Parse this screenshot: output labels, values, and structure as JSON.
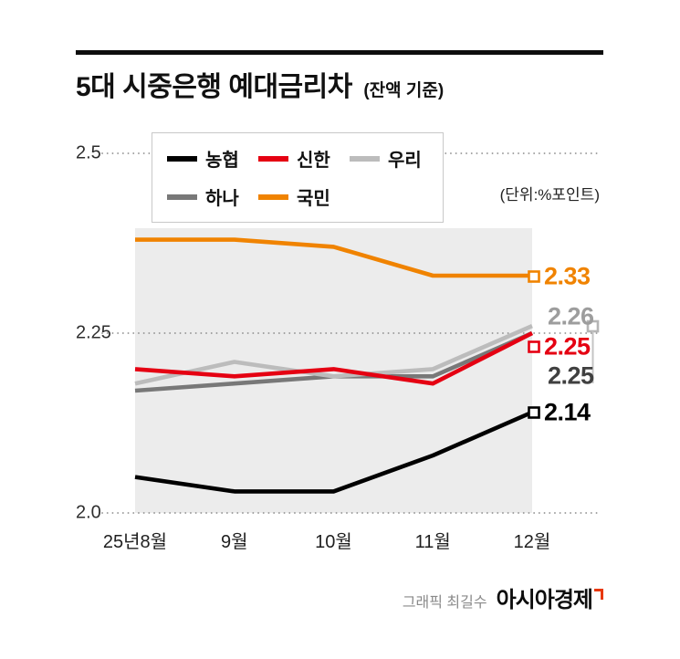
{
  "title": {
    "main": "5대 시중은행 예대금리차",
    "sub": "(잔액 기준)"
  },
  "unit_label": "(단위:%포인트)",
  "legend": [
    {
      "label": "농협",
      "color": "#000000"
    },
    {
      "label": "신한",
      "color": "#e50012"
    },
    {
      "label": "우리",
      "color": "#bcbcbc"
    },
    {
      "label": "하나",
      "color": "#787878"
    },
    {
      "label": "국민",
      "color": "#f08300"
    }
  ],
  "chart_data": {
    "type": "line",
    "title": "5대 시중은행 예대금리차 (잔액 기준)",
    "unit": "%포인트",
    "x": [
      "25년8월",
      "9월",
      "10월",
      "11월",
      "12월"
    ],
    "ylim": [
      2.0,
      2.5
    ],
    "yticks": [
      {
        "label": "2.5",
        "value": 2.5
      },
      {
        "label": "2.25",
        "value": 2.25
      },
      {
        "label": "2.0",
        "value": 2.0
      }
    ],
    "grid": "dotted-horizontal",
    "legend_position": "top",
    "plot_background": "#ececec",
    "series": [
      {
        "name": "하나",
        "color": "#787878",
        "values": [
          2.17,
          2.18,
          2.19,
          2.19,
          2.25
        ]
      },
      {
        "name": "우리",
        "color": "#bcbcbc",
        "values": [
          2.18,
          2.21,
          2.19,
          2.2,
          2.26
        ]
      },
      {
        "name": "신한",
        "color": "#e50012",
        "values": [
          2.2,
          2.19,
          2.2,
          2.18,
          2.25
        ]
      },
      {
        "name": "국민",
        "color": "#f08300",
        "values": [
          2.38,
          2.38,
          2.37,
          2.33,
          2.33
        ]
      },
      {
        "name": "농협",
        "color": "#000000",
        "values": [
          2.05,
          2.03,
          2.03,
          2.08,
          2.14
        ]
      }
    ],
    "end_labels": [
      {
        "text": "2.33",
        "series": "국민",
        "color": "#f08300"
      },
      {
        "text": "2.26",
        "series": "우리",
        "color": "#9d9d9d"
      },
      {
        "text": "2.25",
        "series": "신한",
        "color": "#e50012"
      },
      {
        "text": "2.25",
        "series": "하나",
        "color": "#404040"
      },
      {
        "text": "2.14",
        "series": "농협",
        "color": "#000000"
      }
    ]
  },
  "footer": {
    "credit": "그래픽 최길수",
    "brand": "아시아경제"
  }
}
